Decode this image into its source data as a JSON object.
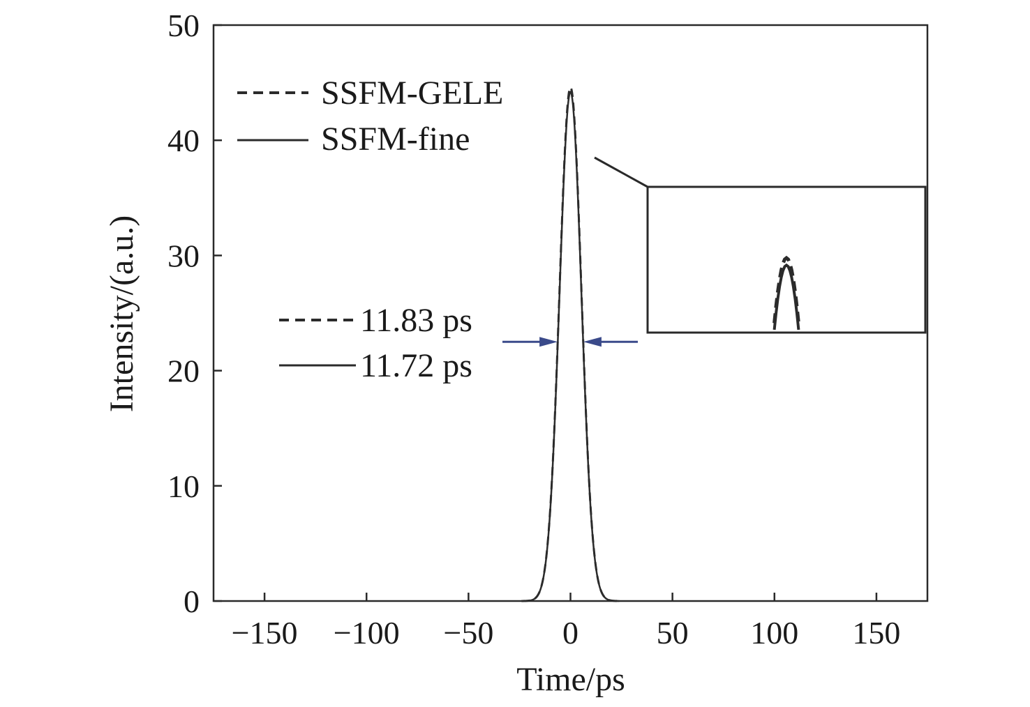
{
  "chart_data": {
    "type": "line",
    "xlabel": "Time/ps",
    "ylabel": "Intensity/(a.u.)",
    "xlim": [
      -175,
      175
    ],
    "ylim": [
      0,
      50
    ],
    "x_ticks": [
      -150,
      -100,
      -50,
      0,
      50,
      100,
      150
    ],
    "y_ticks": [
      0,
      10,
      20,
      30,
      40,
      50
    ],
    "x_tick_labels": [
      "−150",
      "−100",
      "−50",
      "0",
      "50",
      "100",
      "150"
    ],
    "y_tick_labels": [
      "0",
      "10",
      "20",
      "30",
      "40",
      "50"
    ],
    "grid": false,
    "legend_position": "top-left",
    "series": [
      {
        "name": "SSFM-GELE",
        "style": "dashed",
        "color": "#2b2b2b",
        "x": [
          -24,
          -20,
          -16,
          -12,
          -10,
          -8,
          -6,
          -4,
          -2,
          0,
          2,
          4,
          6,
          8,
          10,
          12,
          16,
          20,
          24
        ],
        "y": [
          0.04,
          0.3,
          1.7,
          6.5,
          10.9,
          16.6,
          23.3,
          30.4,
          36.9,
          44.6,
          36.9,
          30.4,
          23.3,
          16.6,
          10.9,
          6.5,
          1.7,
          0.3,
          0.04
        ]
      },
      {
        "name": "SSFM-fine",
        "style": "solid",
        "color": "#2b2b2b",
        "x": [
          -24,
          -20,
          -16,
          -12,
          -10,
          -8,
          -6,
          -4,
          -2,
          0,
          2,
          4,
          6,
          8,
          10,
          12,
          16,
          20,
          24
        ],
        "y": [
          0.04,
          0.3,
          1.6,
          6.3,
          10.7,
          16.4,
          23.1,
          30.1,
          36.6,
          44.2,
          36.6,
          30.1,
          23.1,
          16.4,
          10.7,
          6.3,
          1.6,
          0.3,
          0.04
        ]
      }
    ],
    "annotations": {
      "fwhm_labels": [
        "11.83 ps",
        "11.72 ps"
      ],
      "fwhm_arrow_y": 22.5,
      "fwhm_arrow_color": "#3a4a8a"
    }
  }
}
